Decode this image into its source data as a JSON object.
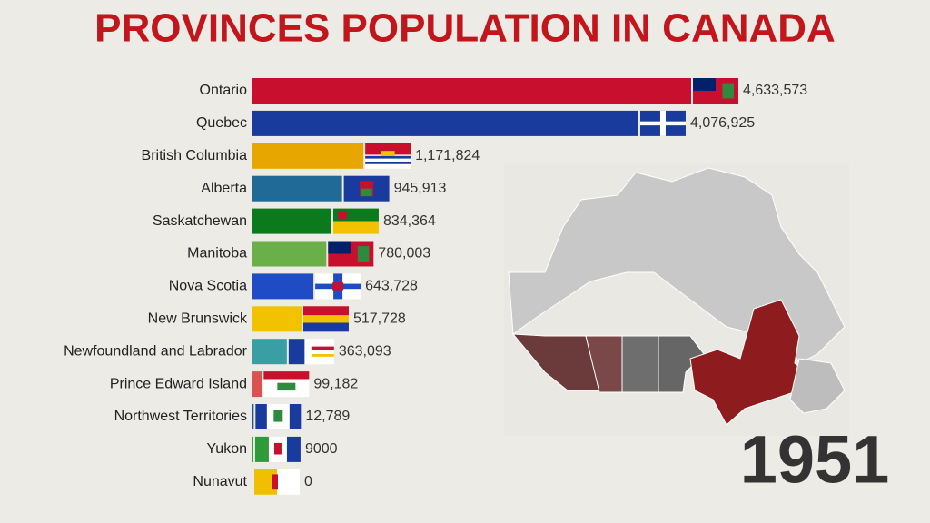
{
  "chart_data": {
    "type": "bar",
    "orientation": "horizontal",
    "title": "PROVINCES POPULATION IN CANADA",
    "year": "1951",
    "categories": [
      "Ontario",
      "Quebec",
      "British Columbia",
      "Alberta",
      "Saskatchewan",
      "Manitoba",
      "Nova Scotia",
      "New Brunswick",
      "Newfoundland and Labrador",
      "Prince Edward Island",
      "Northwest Territories",
      "Yukon",
      "Nunavut"
    ],
    "values": [
      4633573,
      4076925,
      1171824,
      945913,
      834364,
      780003,
      643728,
      517728,
      363093,
      99182,
      12789,
      9000,
      0
    ],
    "value_labels": [
      "4,633,573",
      "4,076,925",
      "1,171,824",
      "945,913",
      "834,364",
      "780,003",
      "643,728",
      "517,728",
      "363,093",
      "99,182",
      "12,789",
      "9000",
      "0"
    ],
    "colors": [
      "#c8102e",
      "#1a3b9e",
      "#e7a600",
      "#1f6a96",
      "#0b7a1c",
      "#6aaf48",
      "#1f4cc4",
      "#f2c200",
      "#3a9fa3",
      "#d9534f",
      "#2a4aa8",
      "#2f9a3a",
      "#f0c000"
    ]
  }
}
